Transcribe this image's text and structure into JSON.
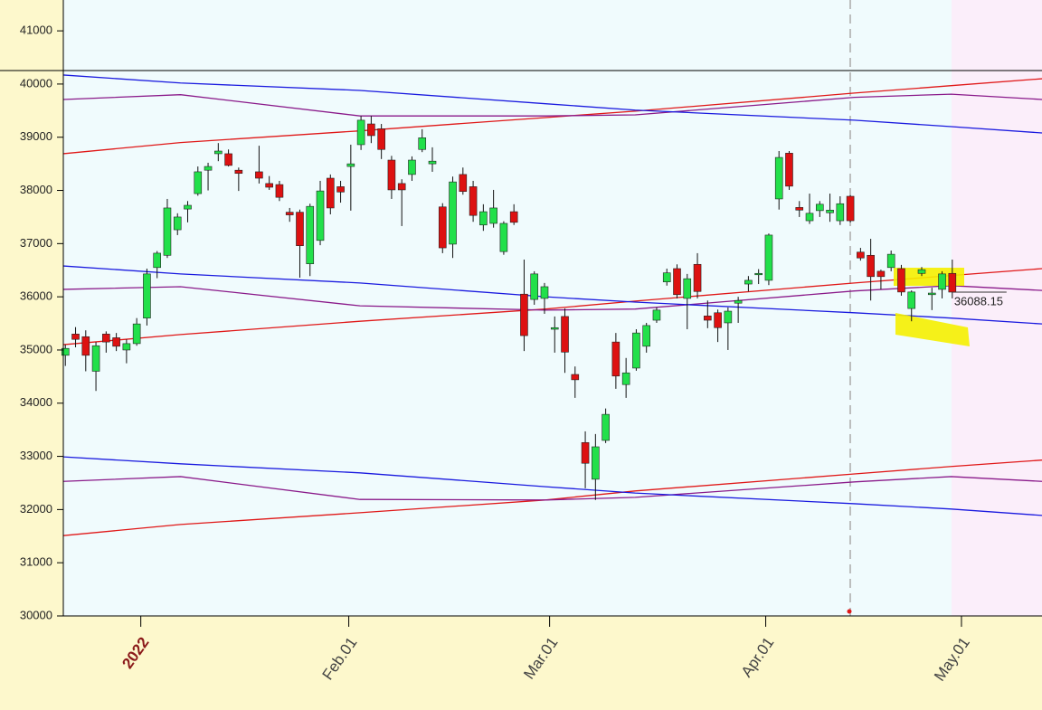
{
  "chart_data": {
    "type": "candlestick",
    "x": [
      0,
      1,
      2,
      3,
      4,
      5,
      6,
      7,
      8,
      9,
      10,
      11,
      12,
      13,
      14,
      15,
      16,
      17,
      19,
      20,
      21,
      22,
      23,
      24,
      25,
      26,
      27,
      28,
      29,
      30,
      31,
      32,
      33,
      34,
      35,
      36,
      37,
      38,
      39,
      40,
      41,
      42,
      43,
      44,
      45,
      46,
      47,
      48,
      49,
      50,
      51,
      52,
      53,
      54,
      55,
      56,
      57,
      58,
      59,
      60,
      61,
      62,
      63,
      64,
      65,
      66,
      67,
      68,
      69,
      70,
      71,
      72,
      73,
      74,
      75,
      76,
      77,
      78,
      79,
      80,
      81,
      82,
      83,
      84,
      85,
      86,
      87
    ],
    "open": [
      34900,
      35300,
      35250,
      34600,
      35300,
      35230,
      35000,
      35120,
      35600,
      36550,
      36780,
      37260,
      37650,
      37940,
      38380,
      38690,
      38690,
      38380,
      38350,
      38130,
      38110,
      37590,
      37590,
      36620,
      37060,
      38230,
      38070,
      38450,
      38860,
      39250,
      39160,
      38570,
      38130,
      38300,
      38770,
      38500,
      37690,
      36990,
      38300,
      38070,
      37350,
      37380,
      36850,
      37600,
      36050,
      35950,
      35970,
      35390,
      35630,
      34540,
      33260,
      32570,
      33300,
      35150,
      34350,
      34660,
      35070,
      35560,
      36280,
      36530,
      35970,
      36610,
      35640,
      35700,
      35510,
      35880,
      36240,
      36420,
      36310,
      37840,
      38700,
      37680,
      37430,
      37620,
      37580,
      37430,
      37890,
      36840,
      36780,
      36480,
      36550,
      36530,
      35780,
      36440,
      36040,
      36140,
      36440
    ],
    "high": [
      35100,
      35430,
      35370,
      35150,
      35350,
      35320,
      35200,
      35600,
      36530,
      36860,
      37840,
      37570,
      37800,
      38450,
      38520,
      38890,
      38770,
      38430,
      38840,
      38270,
      38180,
      37670,
      37640,
      37750,
      38180,
      38300,
      38180,
      38860,
      39400,
      39400,
      39250,
      38650,
      38210,
      38640,
      39150,
      38810,
      37760,
      38260,
      38430,
      38180,
      37740,
      38010,
      37420,
      37740,
      36700,
      36480,
      36260,
      35630,
      35780,
      34690,
      33470,
      33420,
      33900,
      35320,
      34850,
      35390,
      35510,
      35800,
      36530,
      36610,
      36430,
      36820,
      35930,
      35760,
      35800,
      36000,
      36390,
      36520,
      37190,
      38740,
      38740,
      37800,
      37940,
      37800,
      37940,
      37890,
      37910,
      36920,
      37090,
      36510,
      36870,
      36600,
      36120,
      36560,
      36170,
      36480,
      36700
    ],
    "low": [
      34700,
      35050,
      34600,
      34230,
      34950,
      34980,
      34750,
      35080,
      35460,
      36350,
      36730,
      37160,
      37400,
      37900,
      38000,
      38550,
      38450,
      37990,
      38130,
      38010,
      37800,
      37410,
      36360,
      36390,
      36970,
      37550,
      37770,
      37620,
      38760,
      38890,
      38590,
      37840,
      37330,
      38180,
      38720,
      38350,
      36820,
      36730,
      37920,
      37410,
      37240,
      37300,
      36790,
      37350,
      34980,
      35850,
      35680,
      34950,
      34570,
      34100,
      32400,
      32180,
      33250,
      34270,
      34100,
      34610,
      34950,
      35510,
      36210,
      35970,
      35390,
      35970,
      35410,
      35150,
      35000,
      35510,
      36100,
      36240,
      36220,
      37640,
      38010,
      37500,
      37370,
      37500,
      37410,
      37350,
      37400,
      36680,
      35930,
      36140,
      36480,
      36020,
      35540,
      36390,
      35750,
      35970,
      35970
    ],
    "close": [
      35030,
      35200,
      34900,
      35080,
      35150,
      35070,
      35120,
      35490,
      36430,
      36820,
      37670,
      37500,
      37720,
      38350,
      38450,
      38740,
      38470,
      38320,
      38230,
      38060,
      37870,
      37540,
      36960,
      37700,
      37990,
      37670,
      37970,
      38500,
      39320,
      39030,
      38770,
      38010,
      38010,
      38570,
      38990,
      38550,
      36920,
      38160,
      37980,
      37530,
      37600,
      37670,
      37380,
      37400,
      35270,
      36430,
      36190,
      35420,
      34960,
      34440,
      32870,
      33180,
      33790,
      34510,
      34570,
      35320,
      35460,
      35750,
      36450,
      36040,
      36340,
      36100,
      35560,
      35420,
      35730,
      35930,
      36310,
      36440,
      37160,
      38620,
      38080,
      37630,
      37570,
      37740,
      37630,
      37750,
      37430,
      36730,
      36380,
      36380,
      36800,
      36090,
      36090,
      36510,
      36070,
      36430,
      36088.15
    ],
    "up_color": "#22e04a",
    "down_color": "#dd1111",
    "line_x": [
      -0.2,
      11.3,
      28.9,
      47.1,
      55.9,
      77.4,
      86.9,
      95.8
    ],
    "lines": [
      {
        "color": "#e01818",
        "values": [
          38690,
          38900,
          39120,
          39370,
          39490,
          39830,
          39970,
          40100
        ]
      },
      {
        "color": "#8a1a8a",
        "values": [
          39710,
          39800,
          39400,
          39400,
          39420,
          39750,
          39810,
          39710
        ]
      },
      {
        "color": "#1a1adf",
        "values": [
          40170,
          40020,
          39880,
          39630,
          39510,
          39320,
          39200,
          39080
        ]
      },
      {
        "color": "#e01818",
        "values": [
          35100,
          35290,
          35540,
          35770,
          35920,
          36260,
          36400,
          36530
        ]
      },
      {
        "color": "#8a1a8a",
        "values": [
          36140,
          36190,
          35830,
          35750,
          35770,
          36110,
          36210,
          36120
        ]
      },
      {
        "color": "#1a1adf",
        "values": [
          36580,
          36430,
          36260,
          36000,
          35900,
          35700,
          35600,
          35490
        ]
      },
      {
        "color": "#e01818",
        "values": [
          31510,
          31720,
          31940,
          32180,
          32350,
          32670,
          32810,
          32930
        ]
      },
      {
        "color": "#8a1a8a",
        "values": [
          32530,
          32620,
          32190,
          32180,
          32230,
          32520,
          32620,
          32530
        ]
      },
      {
        "color": "#1a1adf",
        "values": [
          32990,
          32860,
          32690,
          32430,
          32310,
          32110,
          32010,
          31890
        ]
      }
    ],
    "xlim": [
      -0.2,
      95.8
    ],
    "xticks": [
      {
        "value": 7.4,
        "label": "2022"
      },
      {
        "value": 27.8,
        "label": "Feb.01"
      },
      {
        "value": 47.5,
        "label": "Mar.01"
      },
      {
        "value": 68.7,
        "label": "Apr.01"
      },
      {
        "value": 87.9,
        "label": "May.01"
      }
    ],
    "ylim": [
      30000,
      41580
    ],
    "yticks": [
      30000,
      31000,
      32000,
      33000,
      34000,
      35000,
      36000,
      37000,
      38000,
      39000,
      40000,
      41000
    ]
  }
}
